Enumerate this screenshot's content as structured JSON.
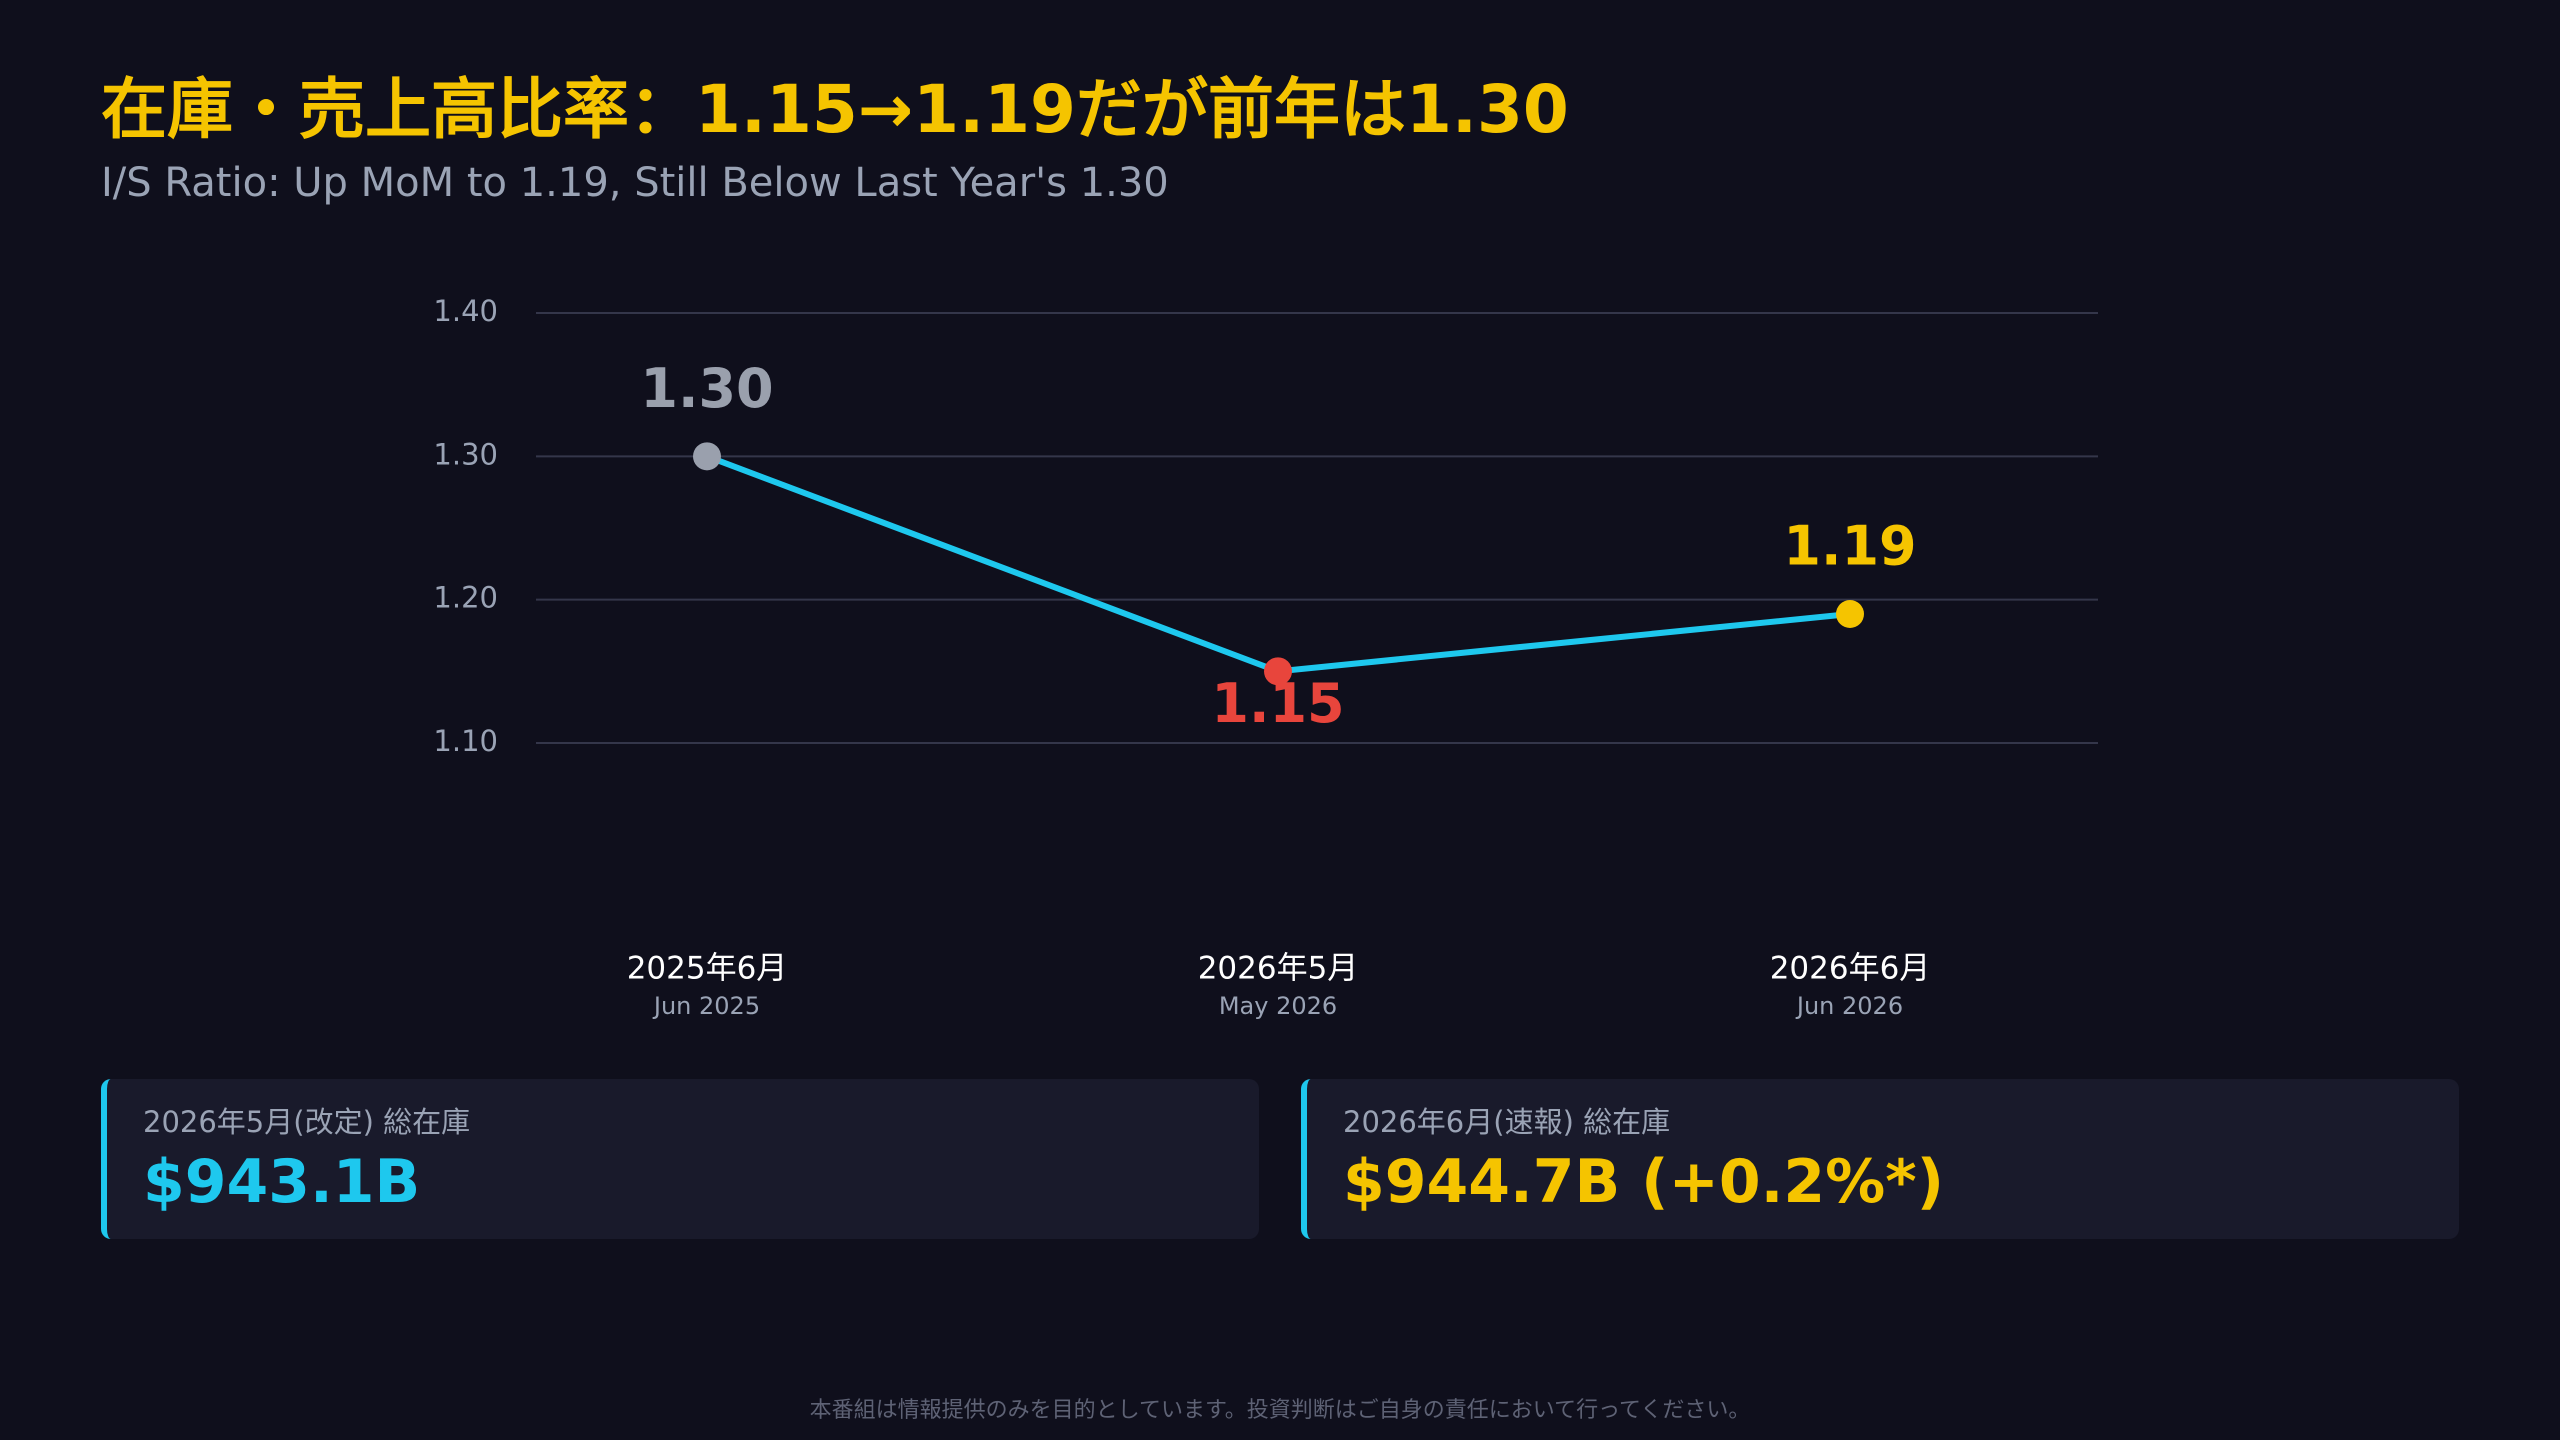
{
  "chart_data": {
    "type": "line",
    "title": "在庫・売上高比率：1.15→1.19だが前年は1.30",
    "subtitle": "I/S Ratio: Up MoM to 1.19, Still Below Last Year's 1.30",
    "categories": [
      "2025年6月",
      "2026年5月",
      "2026年6月"
    ],
    "category_sublabels": [
      "Jun 2025",
      "May 2026",
      "Jun 2026"
    ],
    "values": [
      1.3,
      1.15,
      1.19
    ],
    "value_labels": [
      "1.30",
      "1.15",
      "1.19"
    ],
    "color": "#1ec8ee",
    "point_colors": [
      "#9aa0ad",
      "#e8453c",
      "#f5c400"
    ],
    "ylim": [
      1.1,
      1.4
    ],
    "yticks": [
      {
        "value": 1.4,
        "label": "1.40"
      },
      {
        "value": 1.3,
        "label": "1.30"
      },
      {
        "value": 1.2,
        "label": "1.20"
      },
      {
        "value": 1.1,
        "label": "1.10"
      }
    ],
    "grid": true
  },
  "cards": [
    {
      "label": "2026年5月(改定) 総在庫",
      "value": "$943.1B"
    },
    {
      "label": "2026年6月(速報) 総在庫",
      "value": "$944.7B (+0.2%*)"
    }
  ],
  "disclaimer": "本番組は情報提供のみを目的としています。投資判断はご自身の責任において行ってください。"
}
